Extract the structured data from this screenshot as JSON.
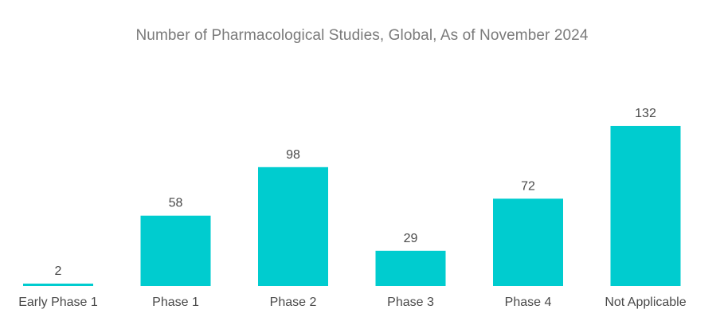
{
  "chart_data": {
    "type": "bar",
    "title": "Number of Pharmacological Studies, Global, As of November 2024",
    "categories": [
      "Early Phase 1",
      "Phase 1",
      "Phase 2",
      "Phase 3",
      "Phase 4",
      "Not Applicable"
    ],
    "values": [
      2,
      58,
      98,
      29,
      72,
      132
    ],
    "xlabel": "",
    "ylabel": "",
    "ylim": [
      0,
      132
    ],
    "grid": false,
    "bar_color": "#00cccf",
    "label_color": "#4a4a4a",
    "title_color": "#7a7a7a"
  }
}
